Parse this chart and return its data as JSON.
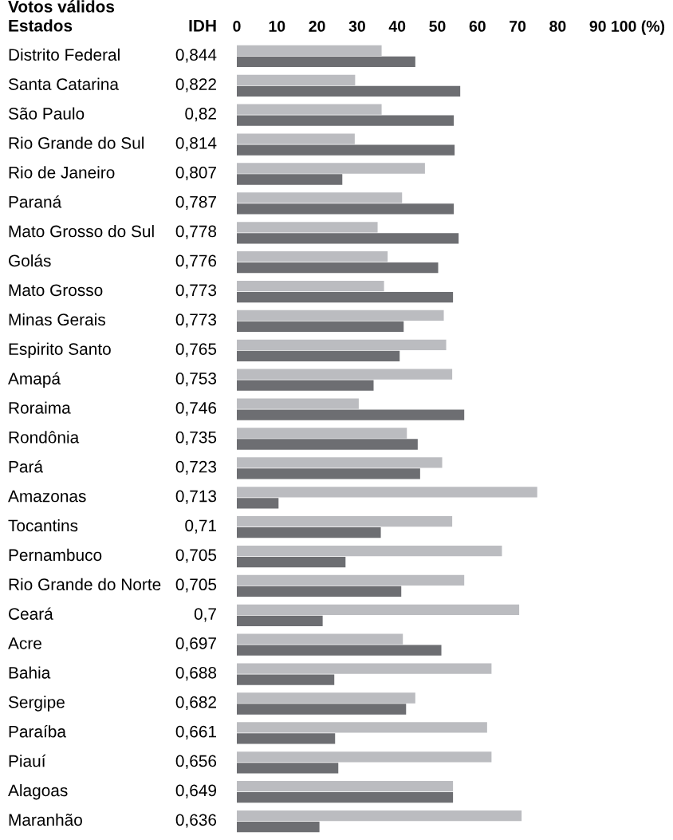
{
  "chart_data": {
    "type": "bar",
    "orientation": "horizontal",
    "title": "Votos válidos",
    "ylabel": "Estados",
    "y2label": "IDH",
    "categories": [
      "Distrito Federal",
      "Santa Catarina",
      "São Paulo",
      "Rio Grande do Sul",
      "Rio de Janeiro",
      "Paraná",
      "Mato Grosso do Sul",
      "Golás",
      "Mato Grosso",
      "Minas Gerais",
      "Espirito Santo",
      "Amapá",
      "Roraima",
      "Rondônia",
      "Pará",
      "Amazonas",
      "Tocantins",
      "Pernambuco",
      "Rio Grande do Norte",
      "Ceará",
      "Acre",
      "Bahia",
      "Sergipe",
      "Paraíba",
      "Piauí",
      "Alagoas",
      "Maranhão"
    ],
    "y2_categories": [
      "0,844",
      "0,822",
      "0,82",
      "0,814",
      "0,807",
      "0,787",
      "0,778",
      "0,776",
      "0,773",
      "0,773",
      "0,765",
      "0,753",
      "0,746",
      "0,735",
      "0,723",
      "0,713",
      "0,71",
      "0,705",
      "0,705",
      "0,7",
      "0,697",
      "0,688",
      "0,682",
      "0,661",
      "0,656",
      "0,649",
      "0,636"
    ],
    "series": [
      {
        "color": "#bbbcc0",
        "values": [
          36.1,
          29.5,
          36.1,
          29.4,
          46.9,
          41.2,
          35.1,
          37.6,
          36.7,
          51.6,
          52.2,
          53.7,
          30.4,
          42.4,
          51.2,
          74.9,
          53.7,
          66.1,
          56.7,
          70.4,
          41.4,
          63.5,
          44.5,
          62.4,
          63.5,
          53.9,
          71.0
        ]
      },
      {
        "color": "#6d6e72",
        "values": [
          44.5,
          55.7,
          54.1,
          54.3,
          26.3,
          54.1,
          55.3,
          50.2,
          53.9,
          41.6,
          40.6,
          34.1,
          56.7,
          45.1,
          45.7,
          10.4,
          35.9,
          27.1,
          41.0,
          21.4,
          51.0,
          24.3,
          42.2,
          24.5,
          25.3,
          53.9,
          20.6
        ]
      }
    ],
    "xlim": [
      0,
      100
    ],
    "xticks": [
      0,
      10,
      20,
      30,
      40,
      50,
      60,
      70,
      80,
      90,
      {
        "value": 100,
        "label": "100 (%)"
      }
    ],
    "grid": false,
    "legend": false
  }
}
